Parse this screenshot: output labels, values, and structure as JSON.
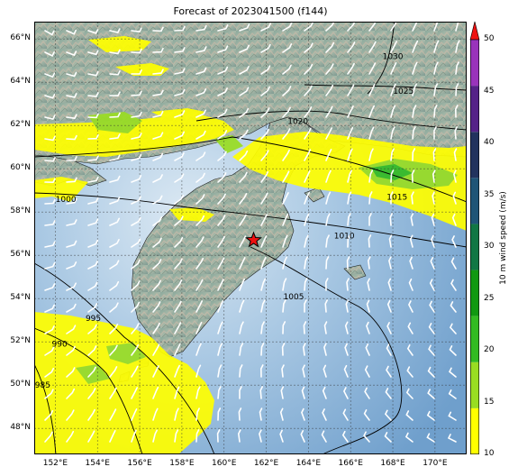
{
  "title": "Forecast of 2023041500 (f144)",
  "map": {
    "lon_range": [
      151,
      171.5
    ],
    "lat_range": [
      46.8,
      66.8
    ],
    "lat_ticks": [
      "66°N",
      "64°N",
      "62°N",
      "60°N",
      "58°N",
      "56°N",
      "54°N",
      "52°N",
      "50°N",
      "48°N"
    ],
    "lat_tick_values": [
      66,
      64,
      62,
      60,
      58,
      56,
      54,
      52,
      50,
      48
    ],
    "lon_ticks": [
      "152°E",
      "154°E",
      "156°E",
      "158°E",
      "160°E",
      "162°E",
      "164°E",
      "166°E",
      "168°E",
      "170°E"
    ],
    "lon_tick_values": [
      152,
      154,
      156,
      158,
      160,
      162,
      164,
      166,
      168,
      170
    ],
    "grid": true,
    "marker": {
      "type": "red-star",
      "lon": 161.4,
      "lat": 56.7
    },
    "isobars": [
      {
        "label": "1030",
        "lon": 168.0,
        "lat": 65.2
      },
      {
        "label": "1025",
        "lon": 168.5,
        "lat": 63.6
      },
      {
        "label": "1020",
        "lon": 163.5,
        "lat": 62.2
      },
      {
        "label": "1015",
        "lon": 168.2,
        "lat": 58.7
      },
      {
        "label": "1010",
        "lon": 165.7,
        "lat": 56.9
      },
      {
        "label": "1005",
        "lon": 163.3,
        "lat": 54.1
      },
      {
        "label": "1000",
        "lon": 152.5,
        "lat": 58.6
      },
      {
        "label": "995",
        "lon": 153.8,
        "lat": 53.1
      },
      {
        "label": "990",
        "lon": 152.2,
        "lat": 51.9
      },
      {
        "label": "985",
        "lon": 151.4,
        "lat": 50.0
      }
    ]
  },
  "colorbar": {
    "title": "10 m wind speed (m/s)",
    "ticks": [
      "10",
      "15",
      "20",
      "25",
      "30",
      "35",
      "40",
      "45",
      "50"
    ],
    "colors": [
      "#ffff00",
      "#99dd22",
      "#33bb22",
      "#119911",
      "#117744",
      "#1f5577",
      "#22335e",
      "#552288",
      "#9933bb"
    ],
    "extend": "max",
    "extend_color": "#ee1111"
  }
}
